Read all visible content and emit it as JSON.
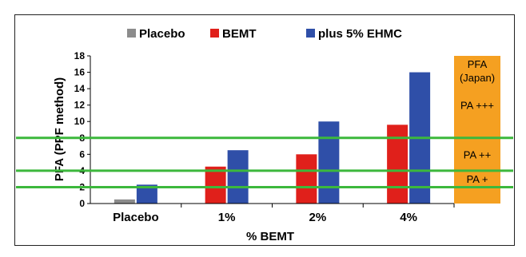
{
  "chart_data": {
    "type": "bar",
    "title": "",
    "xlabel": "% BEMT",
    "ylabel": "PFA (PPF method)",
    "categories": [
      "Placebo",
      "1%",
      "2%",
      "4%"
    ],
    "ylim": [
      0,
      18
    ],
    "yticks": [
      0,
      2,
      4,
      6,
      8,
      10,
      12,
      14,
      16,
      18
    ],
    "series": [
      {
        "name": "Placebo",
        "color": "#8c8c8c",
        "values": [
          0.5,
          null,
          null,
          null
        ]
      },
      {
        "name": "BEMT",
        "color": "#e0201b",
        "values": [
          null,
          4.5,
          6.0,
          9.6
        ]
      },
      {
        "name": "plus 5% EHMC",
        "color": "#2f4fa8",
        "values": [
          2.3,
          6.5,
          10.0,
          16.0
        ]
      }
    ],
    "reference_lines": {
      "color": "#3cb83c",
      "values": [
        2,
        4,
        8
      ]
    },
    "legend_position": "top",
    "grid": false,
    "side_panel": {
      "color": "#f5a021",
      "title_line1": "PFA",
      "title_line2": "(Japan)",
      "bands": [
        {
          "label": "PA +++",
          "from": 8,
          "to": 16
        },
        {
          "label": "PA ++",
          "from": 4,
          "to": 8
        },
        {
          "label": "PA +",
          "from": 2,
          "to": 4
        }
      ]
    }
  }
}
